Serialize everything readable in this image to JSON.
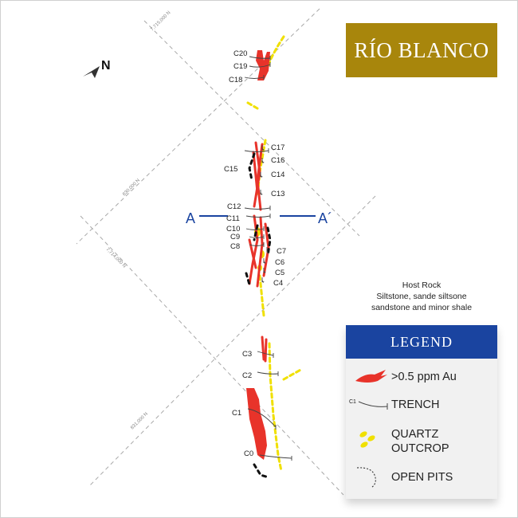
{
  "title": "RÍO BLANCO",
  "north_label": "N",
  "section": {
    "start": "A",
    "end": "A´"
  },
  "grid_labels": [
    "7,715,000 N",
    "830,000 N",
    "7,714,000 N",
    "831,000 N"
  ],
  "host_rock": {
    "heading": "Host Rock",
    "lines": [
      "Siltstone, sande siltsone",
      "sandstone and minor shale"
    ]
  },
  "legend": {
    "title": "LEGEND",
    "items": [
      {
        "label": "&gt;0.5 ppm Au",
        "color": "#e8332a",
        "icon": "gold-anomaly-swatch"
      },
      {
        "label": "TRENCH",
        "sample": "C1",
        "icon": "trench-line-symbol"
      },
      {
        "label": "QUARTZ OUTCROP",
        "color": "#f0e000",
        "icon": "quartz-outcrop-swatch"
      },
      {
        "label": "OPEN PITS",
        "icon": "open-pit-outline"
      }
    ]
  },
  "colors": {
    "gold": "#a8860c",
    "legend_blue": "#1a44a0",
    "au": "#e8332a",
    "quartz": "#f0e000",
    "section_line": "#1a44a0"
  },
  "trenches": [
    "C20",
    "C19",
    "C18",
    "C17",
    "C16",
    "C15",
    "C14",
    "C13",
    "C12",
    "C11",
    "C10",
    "C9",
    "C8",
    "C7",
    "C6",
    "C5",
    "C4",
    "C3",
    "C2",
    "C1",
    "C0"
  ]
}
